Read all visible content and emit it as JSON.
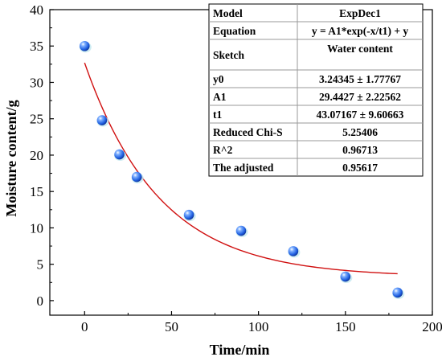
{
  "chart_data": {
    "type": "scatter",
    "xlabel": "Time/min",
    "ylabel": "Moisture content/g",
    "xlim": [
      -20,
      200
    ],
    "ylim": [
      -2,
      40
    ],
    "xticks": [
      0,
      50,
      100,
      150,
      200
    ],
    "yticks": [
      0,
      5,
      10,
      15,
      20,
      25,
      30,
      35,
      40
    ],
    "grid": false,
    "series": [
      {
        "type": "scatter",
        "x": [
          0,
          10,
          20,
          30,
          60,
          90,
          120,
          150,
          180
        ],
        "y": [
          35.0,
          24.8,
          20.1,
          17.0,
          11.8,
          9.6,
          6.8,
          3.3,
          1.1
        ],
        "color": "#1f5fe0"
      },
      {
        "type": "line",
        "model": "ExpDec1",
        "x_range": [
          0,
          180
        ],
        "params": {
          "y0": 3.24345,
          "A1": 29.4427,
          "t1": 43.07167
        },
        "color": "#d01010"
      }
    ],
    "fit_table": [
      {
        "label": "Model",
        "value": "ExpDec1"
      },
      {
        "label": "Equation",
        "value": "y = A1*exp(-x/t1) + y"
      },
      {
        "label": "Sketch",
        "value": "Water content"
      },
      {
        "label": "y0",
        "value": "3.24345 ± 1.77767"
      },
      {
        "label": "A1",
        "value": "29.4427 ± 2.22562"
      },
      {
        "label": "t1",
        "value": "43.07167 ± 9.60663"
      },
      {
        "label": "Reduced Chi-S",
        "value": "5.25406"
      },
      {
        "label": "R^2",
        "value": "0.96713"
      },
      {
        "label": "The adjusted",
        "value": "0.95617"
      }
    ],
    "table_position": "top-right"
  }
}
